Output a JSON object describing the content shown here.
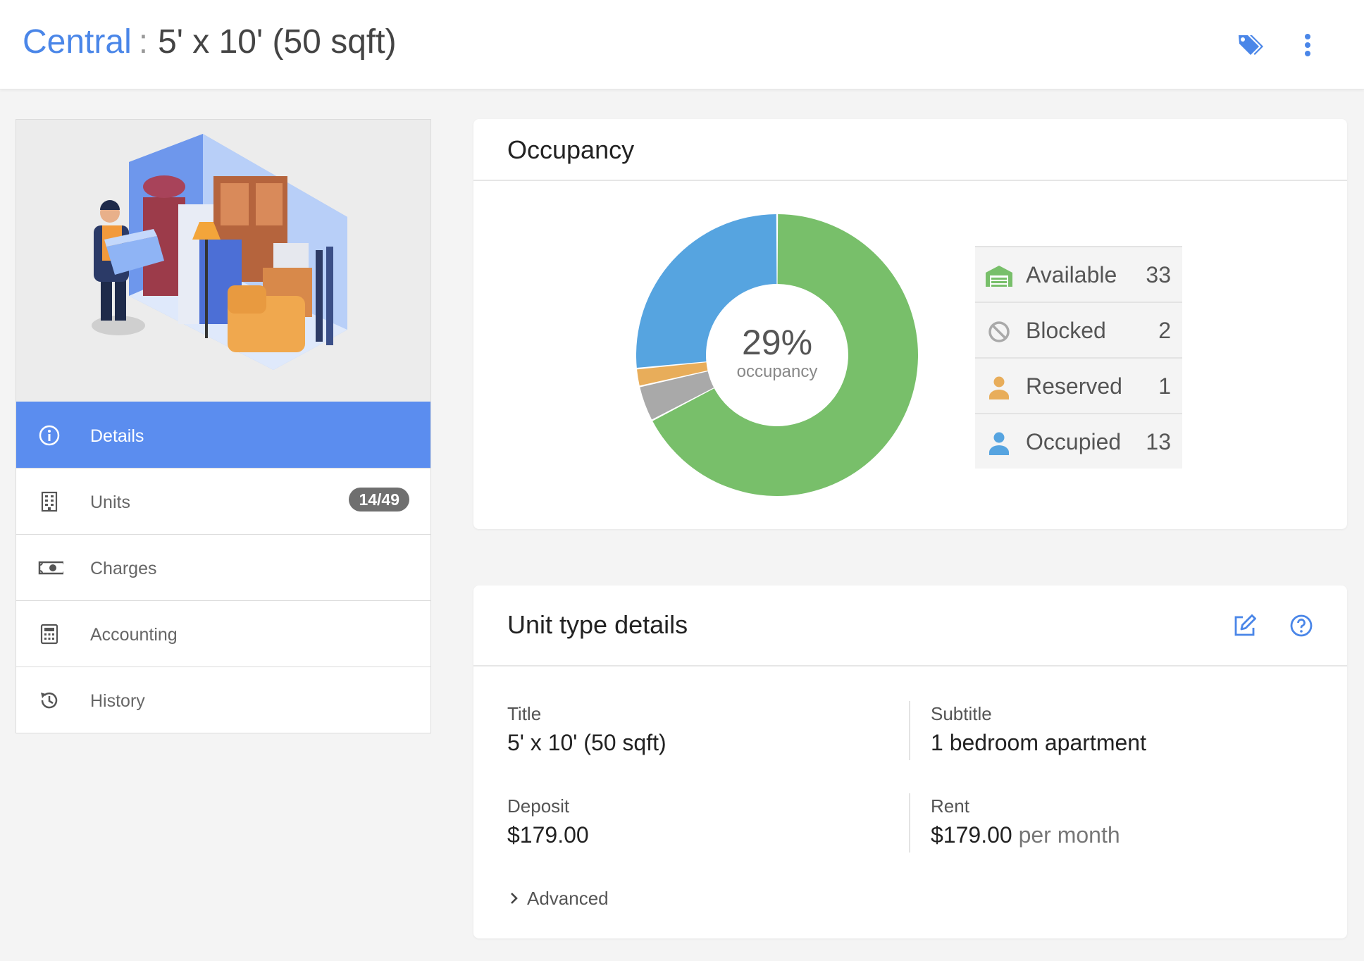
{
  "header": {
    "breadcrumb_link": "Central",
    "separator": ":",
    "current": "5' x 10' (50 sqft)",
    "icons": [
      "tag-icon",
      "more-vertical-icon"
    ]
  },
  "sidebar": {
    "items": [
      {
        "label": "Details",
        "icon": "info-icon",
        "active": true
      },
      {
        "label": "Units",
        "icon": "building-icon",
        "badge": "14/49"
      },
      {
        "label": "Charges",
        "icon": "money-icon"
      },
      {
        "label": "Accounting",
        "icon": "calculator-icon"
      },
      {
        "label": "History",
        "icon": "history-icon"
      }
    ]
  },
  "occupancy": {
    "title": "Occupancy",
    "percent_label": "29%",
    "percent_sub": "occupancy",
    "legend": [
      {
        "label": "Available",
        "count": "33",
        "color": "#78bf6a",
        "icon": "garage-icon"
      },
      {
        "label": "Blocked",
        "count": "2",
        "color": "#a9a9a9",
        "icon": "blocked-icon"
      },
      {
        "label": "Reserved",
        "count": "1",
        "color": "#e8ad5a",
        "icon": "user-icon"
      },
      {
        "label": "Occupied",
        "count": "13",
        "color": "#56a4e0",
        "icon": "user-icon"
      }
    ]
  },
  "chart_data": {
    "type": "pie",
    "categories": [
      "Available",
      "Blocked",
      "Reserved",
      "Occupied"
    ],
    "values": [
      33,
      2,
      1,
      13
    ],
    "colors": [
      "#78bf6a",
      "#a9a9a9",
      "#e8ad5a",
      "#56a4e0"
    ],
    "title": "",
    "donut": true
  },
  "details": {
    "title": "Unit type details",
    "icons": [
      "edit-icon",
      "help-icon"
    ],
    "title_label": "Title",
    "title_value": "5' x 10' (50 sqft)",
    "subtitle_label": "Subtitle",
    "subtitle_value": "1 bedroom apartment",
    "deposit_label": "Deposit",
    "deposit_value": "$179.00",
    "rent_label": "Rent",
    "rent_value": "$179.00",
    "rent_period": "per month",
    "advanced_label": "Advanced"
  }
}
